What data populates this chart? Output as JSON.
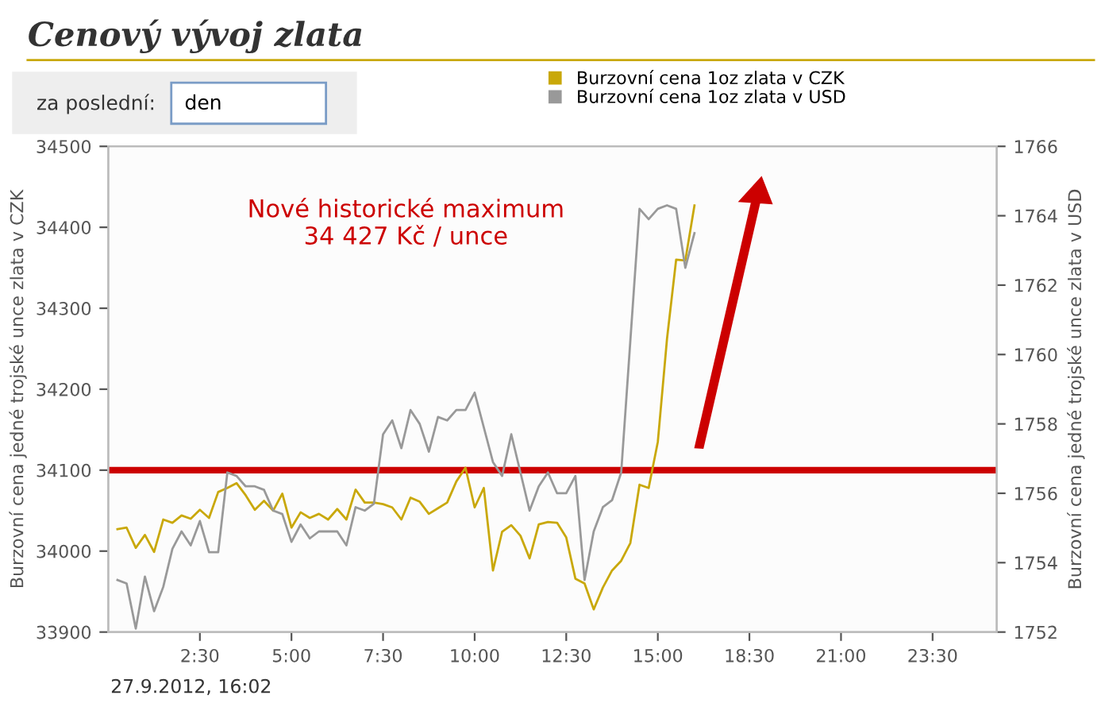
{
  "chart_data": {
    "type": "line",
    "title": "Cenový vývoj zlata",
    "ylabel": "Burzovní cena jedné trojské unce zlata v CZK",
    "y2label": "Burzovní cena jedné trojské unce zlata v USD",
    "categories": [
      null,
      null,
      null,
      null,
      null,
      null,
      null,
      null,
      null,
      "2:30",
      null,
      null,
      null,
      null,
      null,
      null,
      null,
      null,
      null,
      "5:00",
      null,
      null,
      null,
      null,
      null,
      null,
      null,
      null,
      null,
      "7:30",
      null,
      null,
      null,
      null,
      null,
      null,
      null,
      null,
      null,
      "10:00",
      null,
      null,
      null,
      null,
      null,
      null,
      null,
      null,
      null,
      "12:30",
      null,
      null,
      null,
      null,
      null,
      null,
      null,
      null,
      null,
      "15:00",
      null,
      null,
      null,
      null,
      null,
      null,
      null,
      null,
      null,
      "18:30",
      null,
      null,
      null,
      null,
      null,
      null,
      null,
      null,
      null,
      "21:00",
      null,
      null,
      null,
      null,
      null,
      null,
      null,
      null,
      null,
      "23:30",
      null,
      null,
      null,
      null,
      null,
      null,
      null
    ],
    "series": [
      {
        "name": "Burzovní cena 1oz zlata v CZK",
        "color": "#c9a80a",
        "values": [
          34027,
          34029,
          34004,
          34020,
          33999,
          34039,
          34035,
          34044,
          34040,
          34051,
          34041,
          34073,
          34078,
          34084,
          34069,
          34051,
          34062,
          34050,
          34071,
          34029,
          34048,
          34041,
          34046,
          34039,
          34052,
          34039,
          34076,
          34060,
          34060,
          34058,
          34054,
          34039,
          34066,
          34061,
          34046,
          34053,
          34060,
          34086,
          34103,
          34054,
          34078,
          33976,
          34024,
          34032,
          34019,
          33991,
          34033,
          34036,
          34035,
          34017,
          33966,
          33960,
          33928,
          33955,
          33976,
          33988,
          34010,
          34082,
          34078,
          34135,
          34262,
          34360,
          34359,
          34427,
          null,
          null,
          null,
          null,
          null,
          null,
          null,
          null,
          null,
          null,
          null,
          null,
          null,
          null,
          null,
          null,
          null,
          null,
          null,
          null,
          null,
          null,
          null,
          null,
          null,
          null,
          null,
          null,
          null,
          null,
          null,
          null,
          null
        ]
      },
      {
        "name": "Burzovní cena 1oz zlata v USD",
        "color": "#999999",
        "axis": "y2",
        "values": [
          1753.5,
          1753.4,
          1752.1,
          1753.6,
          1752.6,
          1753.3,
          1754.4,
          1754.9,
          1754.5,
          1755.2,
          1754.3,
          1754.3,
          1756.6,
          1756.5,
          1756.2,
          1756.2,
          1756.1,
          1755.5,
          1755.4,
          1754.6,
          1755.1,
          1754.7,
          1754.9,
          1754.9,
          1754.9,
          1754.5,
          1755.6,
          1755.5,
          1755.7,
          1757.7,
          1758.1,
          1757.3,
          1758.4,
          1758.0,
          1757.2,
          1758.2,
          1758.1,
          1758.4,
          1758.4,
          1758.9,
          1757.9,
          1756.9,
          1756.5,
          1757.7,
          1756.6,
          1755.5,
          1756.2,
          1756.6,
          1756.0,
          1756.0,
          1756.5,
          1753.5,
          1754.9,
          1755.6,
          1755.8,
          1756.6,
          1760.4,
          1764.2,
          1763.9,
          1764.2,
          1764.3,
          1764.2,
          1762.5,
          1763.5,
          null,
          null,
          null,
          null,
          null,
          null,
          null,
          null,
          null,
          null,
          null,
          null,
          null,
          null,
          null,
          null,
          null,
          null,
          null,
          null,
          null,
          null,
          null,
          null,
          null,
          null,
          null,
          null,
          null,
          null,
          null,
          null,
          null
        ]
      }
    ],
    "ylim": [
      33900,
      34500
    ],
    "yticks": [
      33900,
      34000,
      34100,
      34200,
      34300,
      34400,
      34500
    ],
    "y2lim": [
      1752,
      1766
    ],
    "y2ticks": [
      1752,
      1754,
      1756,
      1758,
      1760,
      1762,
      1764,
      1766
    ],
    "ref_lines": [
      {
        "axis": "y",
        "value": 34100,
        "color": "#cc0000"
      }
    ],
    "annotations": [
      "za poslední:",
      "den",
      "Nové historické maximum\n34 427 Kč / unce",
      "27.9.2012, 16:02"
    ],
    "legend": "top right",
    "grid": false,
    "marker": "none",
    "line_style": "solid"
  }
}
